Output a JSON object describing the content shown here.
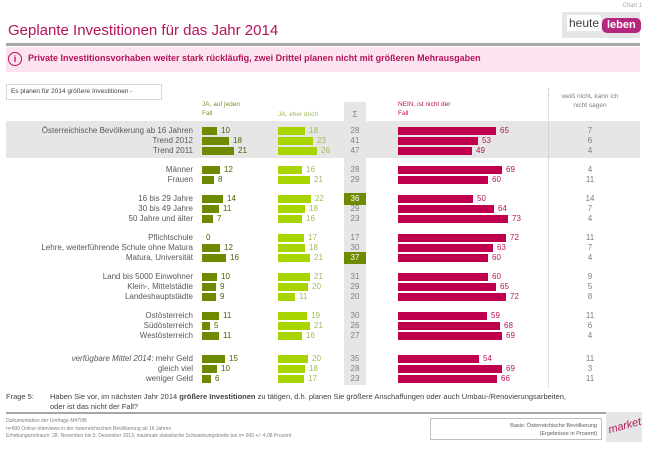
{
  "chart_id": "Chart 1",
  "title": "Geplante Investitionen für das Jahr 2014",
  "logo": {
    "part1": "heute",
    "part2": "leben"
  },
  "subtitle": "Private Investitionsvorhaben weiter stark rückläufig, zwei Drittel planen nicht mit größeren Mehrausgaben",
  "info_icon": "i",
  "question_box": "Es planen für 2014 größere Investitionen -",
  "headers": {
    "ja_jedenfall": "JA, auf jeden Fall",
    "ja_eherdoch": "JA, eher doch",
    "sum": "Σ",
    "nein": "NEIN, ist nicht der Fall",
    "weissnicht": "weiß nicht, kann ich nicht sagen"
  },
  "chart_data": {
    "type": "bar",
    "title": "Geplante Investitionen für das Jahr 2014",
    "unit": "Prozent",
    "series_names": [
      "JA, auf jeden Fall",
      "JA, eher doch",
      "Σ",
      "NEIN, ist nicht der Fall",
      "weiß nicht, kann ich nicht sagen"
    ],
    "colors": {
      "ja_jedenfall": "#6e8b00",
      "ja_eherdoch": "#a8d400",
      "nein": "#c0004f",
      "highlight": "#6e8b00"
    },
    "rows": [
      {
        "label": "Österreichische Bevölkerung ab 16 Jahren",
        "ja1": 10,
        "ja2": 18,
        "sum": 28,
        "nein": 65,
        "wn": 7
      },
      {
        "label": "Trend 2012",
        "ja1": 18,
        "ja2": 23,
        "sum": 41,
        "nein": 53,
        "wn": 6
      },
      {
        "label": "Trend 2011",
        "ja1": 21,
        "ja2": 26,
        "sum": 47,
        "nein": 49,
        "wn": 4
      },
      {
        "label": "Männer",
        "ja1": 12,
        "ja2": 16,
        "sum": 28,
        "nein": 69,
        "wn": 4
      },
      {
        "label": "Frauen",
        "ja1": 8,
        "ja2": 21,
        "sum": 29,
        "nein": 60,
        "wn": 11
      },
      {
        "label": "16 bis 29 Jahre",
        "ja1": 14,
        "ja2": 22,
        "sum": 36,
        "nein": 50,
        "wn": 14,
        "highlight": true
      },
      {
        "label": "30 bis 49 Jahre",
        "ja1": 11,
        "ja2": 18,
        "sum": 29,
        "nein": 64,
        "wn": 7
      },
      {
        "label": "50 Jahre und älter",
        "ja1": 7,
        "ja2": 16,
        "sum": 23,
        "nein": 73,
        "wn": 4
      },
      {
        "label": "Pflichtschule",
        "ja1": 0,
        "ja2": 17,
        "sum": 17,
        "nein": 72,
        "wn": 11
      },
      {
        "label": "Lehre, weiterführende Schule ohne Matura",
        "ja1": 12,
        "ja2": 18,
        "sum": 30,
        "nein": 63,
        "wn": 7
      },
      {
        "label": "Matura, Universität",
        "ja1": 16,
        "ja2": 21,
        "sum": 37,
        "nein": 60,
        "wn": 4,
        "highlight": true
      },
      {
        "label": "Land bis 5000 Einwohner",
        "ja1": 10,
        "ja2": 21,
        "sum": 31,
        "nein": 60,
        "wn": 9
      },
      {
        "label": "Klein-, Mittelstädte",
        "ja1": 9,
        "ja2": 20,
        "sum": 29,
        "nein": 65,
        "wn": 5
      },
      {
        "label": "Landeshauptstädte",
        "ja1": 9,
        "ja2": 11,
        "sum": 20,
        "nein": 72,
        "wn": 8
      },
      {
        "label": "Ostösterreich",
        "ja1": 11,
        "ja2": 19,
        "sum": 30,
        "nein": 59,
        "wn": 11
      },
      {
        "label": "Südösterreich",
        "ja1": 5,
        "ja2": 21,
        "sum": 26,
        "nein": 68,
        "wn": 6
      },
      {
        "label": "Westösterreich",
        "ja1": 11,
        "ja2": 16,
        "sum": 27,
        "nein": 69,
        "wn": 4
      },
      {
        "label": "mehr Geld",
        "label_prefix": "verfügbare Mittel 2014",
        "ja1": 15,
        "ja2": 20,
        "sum": 35,
        "nein": 54,
        "wn": 11
      },
      {
        "label": "gleich viel",
        "ja1": 10,
        "ja2": 18,
        "sum": 28,
        "nein": 69,
        "wn": 3
      },
      {
        "label": "weniger Geld",
        "ja1": 6,
        "ja2": 17,
        "sum": 23,
        "nein": 66,
        "wn": 11
      }
    ]
  },
  "question": {
    "label": "Frage 5:",
    "text_before": "Haben Sie vor, im nächsten Jahr 2014 ",
    "text_bold": "größere Investitionen",
    "text_after": " zu tätigen, d.h. planen Sie größere Anschaffungen oder auch Umbau-/Renovierungsarbeiten,",
    "line2": "oder ist das nicht der Fall?"
  },
  "documentation": {
    "title": "Dokumentation der Umfrage M470B:",
    "line1": "n=600 Online Interviews in der österreichischen Bevölkerung ab 16 Jahren",
    "line2": "Erhebungszeitraum: 28. November bis 5. Dezember 2013, maximale statistische Schwankungsbreite bei n= 600 +/- 4,08 Prozent"
  },
  "basis": {
    "line1": "Basis: Österreichische Bevölkerung",
    "line2": "(Ergebnisse in Prozent)"
  },
  "market_logo": {
    "text": "market",
    "sub": "INSTITUT"
  }
}
